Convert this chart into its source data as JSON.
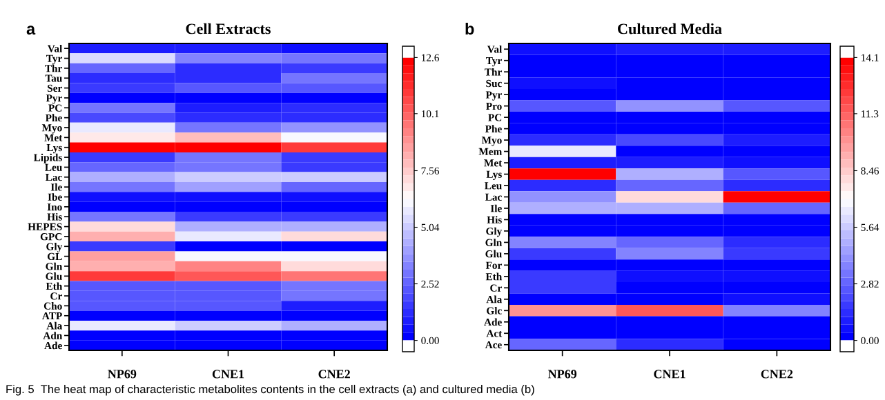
{
  "chart_data": [
    {
      "type": "heatmap",
      "title": "Cell Extracts",
      "categories": [
        "NP69",
        "CNE1",
        "CNE2"
      ],
      "y_categories": [
        "Val",
        "Tyr",
        "Thr",
        "Tau",
        "Ser",
        "Pyr",
        "PC",
        "Phe",
        "Myo",
        "Met",
        "Lys",
        "Lipids",
        "Leu",
        "Lac",
        "Ile",
        "Ibe",
        "Ino",
        "His",
        "HEPES",
        "GPC",
        "Gly",
        "GL",
        "Gln",
        "Glu",
        "Eth",
        "Cr",
        "Cho",
        "ATP",
        "Ala",
        "Adn",
        "Ade"
      ],
      "cells": [
        [
          1.0,
          0.7,
          0.5
        ],
        [
          5.3,
          3.3,
          2.8
        ],
        [
          2.6,
          1.2,
          1.6
        ],
        [
          1.3,
          1.3,
          3.0
        ],
        [
          1.6,
          2.4,
          2.4
        ],
        [
          0.2,
          0.2,
          0.2
        ],
        [
          2.8,
          0.9,
          1.2
        ],
        [
          1.8,
          1.3,
          1.3
        ],
        [
          5.6,
          2.8,
          3.6
        ],
        [
          6.7,
          8.0,
          6.0
        ],
        [
          12.6,
          12.6,
          11.0
        ],
        [
          1.6,
          2.8,
          1.4
        ],
        [
          2.6,
          2.8,
          1.4
        ],
        [
          4.4,
          5.2,
          5.2
        ],
        [
          3.0,
          4.0,
          2.6
        ],
        [
          0.4,
          0.4,
          0.4
        ],
        [
          0.1,
          0.1,
          0.1
        ],
        [
          3.0,
          1.5,
          1.5
        ],
        [
          7.3,
          4.4,
          4.4
        ],
        [
          8.2,
          5.7,
          7.3
        ],
        [
          1.4,
          0.3,
          0.3
        ],
        [
          8.6,
          6.1,
          6.1
        ],
        [
          8.2,
          9.3,
          7.3
        ],
        [
          11.0,
          10.3,
          9.5
        ],
        [
          2.4,
          2.2,
          3.0
        ],
        [
          2.2,
          2.2,
          3.0
        ],
        [
          2.2,
          2.2,
          1.0
        ],
        [
          0.2,
          0.2,
          0.2
        ],
        [
          5.6,
          5.2,
          4.4
        ],
        [
          0.1,
          0.1,
          0.1
        ],
        [
          0.1,
          0.1,
          0.1
        ]
      ],
      "clim": [
        0,
        12.6
      ],
      "cticks": [
        {
          "value": 0,
          "label": "0.00"
        },
        {
          "value": 2.52,
          "label": "2.52"
        },
        {
          "value": 5.04,
          "label": "5.04"
        },
        {
          "value": 7.56,
          "label": "7.56"
        },
        {
          "value": 10.1,
          "label": "10.1"
        },
        {
          "value": 12.6,
          "label": "12.6"
        }
      ],
      "annotations": [
        "a",
        "Fig. 5  The heat map of characteristic metabolites contents in the cell extracts (a) and cultured media (b)"
      ]
    },
    {
      "type": "heatmap",
      "title": "Cultured Media",
      "categories": [
        "NP69",
        "CNE1",
        "CNE2"
      ],
      "y_categories": [
        "Val",
        "Tyr",
        "Thr",
        "Suc",
        "Pyr",
        "Pro",
        "PC",
        "Phe",
        "Myo",
        "Mem",
        "Met",
        "Lys",
        "Leu",
        "Lac",
        "Ile",
        "His",
        "Gly",
        "Gln",
        "Glu",
        "For",
        "Eth",
        "Cr",
        "Ala",
        "Glc",
        "Ade",
        "Act",
        "Ace"
      ],
      "cells": [
        [
          0.6,
          1.0,
          1.0
        ],
        [
          0.1,
          0.1,
          0.1
        ],
        [
          0.1,
          0.1,
          0.1
        ],
        [
          0.5,
          0.2,
          0.2
        ],
        [
          0.1,
          0.1,
          0.1
        ],
        [
          2.6,
          4.2,
          2.6
        ],
        [
          0.1,
          0.1,
          0.1
        ],
        [
          0.1,
          0.1,
          0.1
        ],
        [
          1.5,
          2.0,
          0.8
        ],
        [
          6.4,
          0.2,
          0.2
        ],
        [
          0.8,
          1.0,
          0.6
        ],
        [
          14.1,
          4.8,
          2.6
        ],
        [
          1.4,
          3.0,
          1.2
        ],
        [
          4.2,
          8.0,
          14.1
        ],
        [
          5.0,
          5.0,
          3.0
        ],
        [
          0.1,
          0.1,
          0.1
        ],
        [
          0.1,
          0.1,
          0.1
        ],
        [
          3.8,
          3.0,
          1.2
        ],
        [
          1.8,
          3.6,
          1.6
        ],
        [
          0.2,
          0.2,
          0.2
        ],
        [
          1.6,
          0.6,
          0.6
        ],
        [
          1.6,
          0.2,
          0.2
        ],
        [
          0.2,
          0.2,
          0.6
        ],
        [
          9.8,
          11.5,
          3.6
        ],
        [
          0.1,
          0.1,
          0.1
        ],
        [
          0.1,
          0.1,
          0.1
        ],
        [
          2.8,
          1.2,
          0.2
        ]
      ],
      "clim": [
        0,
        14.1
      ],
      "cticks": [
        {
          "value": 0,
          "label": "0.00"
        },
        {
          "value": 2.82,
          "label": "2.82"
        },
        {
          "value": 5.64,
          "label": "5.64"
        },
        {
          "value": 8.46,
          "label": "8.46"
        },
        {
          "value": 11.3,
          "label": "11.3"
        },
        {
          "value": 14.1,
          "label": "14.1"
        }
      ],
      "annotations": [
        "b"
      ]
    }
  ]
}
